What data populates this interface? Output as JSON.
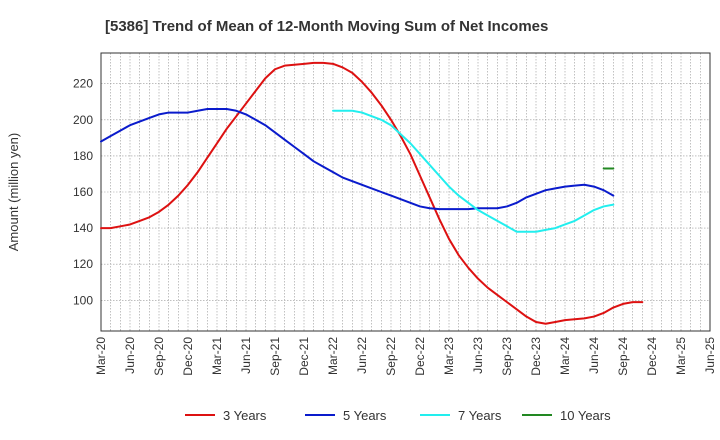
{
  "chart_data": {
    "type": "line",
    "title": "[5386]  Trend of Mean of 12-Month Moving Sum of Net Incomes",
    "xlabel": "",
    "ylabel": "Amount (million yen)",
    "ylim": [
      83,
      237
    ],
    "yticks": [
      100,
      120,
      140,
      160,
      180,
      200,
      220
    ],
    "x_tick_labels": [
      "Mar-20",
      "Jun-20",
      "Sep-20",
      "Dec-20",
      "Mar-21",
      "Jun-21",
      "Sep-21",
      "Dec-21",
      "Mar-22",
      "Jun-22",
      "Sep-22",
      "Dec-22",
      "Mar-23",
      "Jun-23",
      "Sep-23",
      "Dec-23",
      "Mar-24",
      "Jun-24",
      "Sep-24",
      "Dec-24",
      "Mar-25",
      "Jun-25"
    ],
    "grid": true,
    "legend_position": "bottom",
    "series": [
      {
        "name": "3 Years",
        "color": "#dd1111",
        "points": [
          [
            "Mar-20",
            140
          ],
          [
            "Apr-20",
            140
          ],
          [
            "May-20",
            141
          ],
          [
            "Jun-20",
            142
          ],
          [
            "Jul-20",
            144
          ],
          [
            "Aug-20",
            146
          ],
          [
            "Sep-20",
            149
          ],
          [
            "Oct-20",
            153
          ],
          [
            "Nov-20",
            158
          ],
          [
            "Dec-20",
            164
          ],
          [
            "Jan-21",
            171
          ],
          [
            "Feb-21",
            179
          ],
          [
            "Mar-21",
            187
          ],
          [
            "Apr-21",
            195
          ],
          [
            "May-21",
            202
          ],
          [
            "Jun-21",
            209
          ],
          [
            "Jul-21",
            216
          ],
          [
            "Aug-21",
            223
          ],
          [
            "Sep-21",
            228
          ],
          [
            "Oct-21",
            230
          ],
          [
            "Nov-21",
            230.5
          ],
          [
            "Dec-21",
            231
          ],
          [
            "Jan-22",
            231.5
          ],
          [
            "Feb-22",
            231.5
          ],
          [
            "Mar-22",
            231
          ],
          [
            "Apr-22",
            229
          ],
          [
            "May-22",
            226
          ],
          [
            "Jun-22",
            221
          ],
          [
            "Jul-22",
            215
          ],
          [
            "Aug-22",
            208
          ],
          [
            "Sep-22",
            200
          ],
          [
            "Oct-22",
            191
          ],
          [
            "Nov-22",
            181
          ],
          [
            "Dec-22",
            169
          ],
          [
            "Jan-23",
            157
          ],
          [
            "Feb-23",
            145
          ],
          [
            "Mar-23",
            134
          ],
          [
            "Apr-23",
            125
          ],
          [
            "May-23",
            118
          ],
          [
            "Jun-23",
            112
          ],
          [
            "Jul-23",
            107
          ],
          [
            "Aug-23",
            103
          ],
          [
            "Sep-23",
            99
          ],
          [
            "Oct-23",
            95
          ],
          [
            "Nov-23",
            91
          ],
          [
            "Dec-23",
            88
          ],
          [
            "Jan-24",
            87
          ],
          [
            "Feb-24",
            88
          ],
          [
            "Mar-24",
            89
          ],
          [
            "Apr-24",
            89.5
          ],
          [
            "May-24",
            90
          ],
          [
            "Jun-24",
            91
          ],
          [
            "Jul-24",
            93
          ],
          [
            "Aug-24",
            96
          ],
          [
            "Sep-24",
            98
          ],
          [
            "Oct-24",
            99
          ],
          [
            "Nov-24",
            99
          ]
        ]
      },
      {
        "name": "5 Years",
        "color": "#0a1bcc",
        "points": [
          [
            "Mar-20",
            188
          ],
          [
            "Apr-20",
            191
          ],
          [
            "May-20",
            194
          ],
          [
            "Jun-20",
            197
          ],
          [
            "Jul-20",
            199
          ],
          [
            "Aug-20",
            201
          ],
          [
            "Sep-20",
            203
          ],
          [
            "Oct-20",
            204
          ],
          [
            "Nov-20",
            204
          ],
          [
            "Dec-20",
            204
          ],
          [
            "Jan-21",
            205
          ],
          [
            "Feb-21",
            206
          ],
          [
            "Mar-21",
            206
          ],
          [
            "Apr-21",
            206
          ],
          [
            "May-21",
            205
          ],
          [
            "Jun-21",
            203
          ],
          [
            "Jul-21",
            200
          ],
          [
            "Aug-21",
            197
          ],
          [
            "Sep-21",
            193
          ],
          [
            "Oct-21",
            189
          ],
          [
            "Nov-21",
            185
          ],
          [
            "Dec-21",
            181
          ],
          [
            "Jan-22",
            177
          ],
          [
            "Feb-22",
            174
          ],
          [
            "Mar-22",
            171
          ],
          [
            "Apr-22",
            168
          ],
          [
            "May-22",
            166
          ],
          [
            "Jun-22",
            164
          ],
          [
            "Jul-22",
            162
          ],
          [
            "Aug-22",
            160
          ],
          [
            "Sep-22",
            158
          ],
          [
            "Oct-22",
            156
          ],
          [
            "Nov-22",
            154
          ],
          [
            "Dec-22",
            152
          ],
          [
            "Jan-23",
            151
          ],
          [
            "Feb-23",
            150.5
          ],
          [
            "Mar-23",
            150.5
          ],
          [
            "Apr-23",
            150.5
          ],
          [
            "May-23",
            150.5
          ],
          [
            "Jun-23",
            151
          ],
          [
            "Jul-23",
            151
          ],
          [
            "Aug-23",
            151
          ],
          [
            "Sep-23",
            152
          ],
          [
            "Oct-23",
            154
          ],
          [
            "Nov-23",
            157
          ],
          [
            "Dec-23",
            159
          ],
          [
            "Jan-24",
            161
          ],
          [
            "Feb-24",
            162
          ],
          [
            "Mar-24",
            163
          ],
          [
            "Apr-24",
            163.5
          ],
          [
            "May-24",
            164
          ],
          [
            "Jun-24",
            163
          ],
          [
            "Jul-24",
            161
          ],
          [
            "Aug-24",
            158
          ]
        ]
      },
      {
        "name": "7 Years",
        "color": "#22eeee",
        "points": [
          [
            "Mar-22",
            205
          ],
          [
            "Apr-22",
            205
          ],
          [
            "May-22",
            205
          ],
          [
            "Jun-22",
            204
          ],
          [
            "Jul-22",
            202
          ],
          [
            "Aug-22",
            200
          ],
          [
            "Sep-22",
            197
          ],
          [
            "Oct-22",
            192
          ],
          [
            "Nov-22",
            187
          ],
          [
            "Dec-22",
            181
          ],
          [
            "Jan-23",
            175
          ],
          [
            "Feb-23",
            169
          ],
          [
            "Mar-23",
            163
          ],
          [
            "Apr-23",
            158
          ],
          [
            "May-23",
            154
          ],
          [
            "Jun-23",
            150
          ],
          [
            "Jul-23",
            147
          ],
          [
            "Aug-23",
            144
          ],
          [
            "Sep-23",
            141
          ],
          [
            "Oct-23",
            138
          ],
          [
            "Nov-23",
            138
          ],
          [
            "Dec-23",
            138
          ],
          [
            "Jan-24",
            139
          ],
          [
            "Feb-24",
            140
          ],
          [
            "Mar-24",
            142
          ],
          [
            "Apr-24",
            144
          ],
          [
            "May-24",
            147
          ],
          [
            "Jun-24",
            150
          ],
          [
            "Jul-24",
            152
          ],
          [
            "Aug-24",
            153
          ]
        ]
      },
      {
        "name": "10 Years",
        "color": "#228822",
        "points": [
          [
            "Jul-24",
            173
          ],
          [
            "Aug-24",
            173
          ]
        ]
      }
    ]
  }
}
